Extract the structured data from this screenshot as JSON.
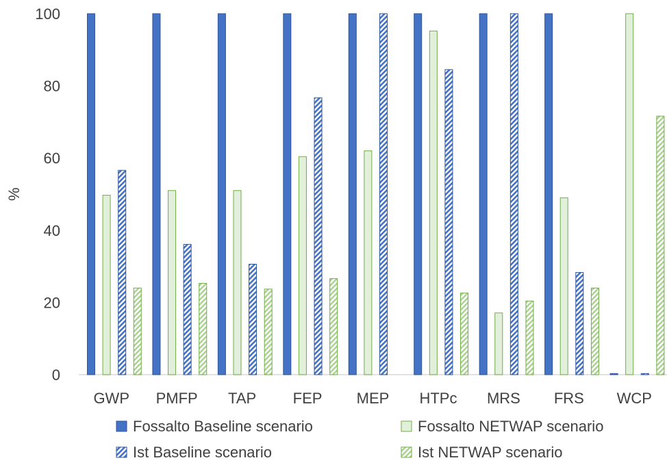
{
  "chart_data": {
    "type": "bar",
    "title": "",
    "xlabel": "",
    "ylabel": "%",
    "ylim": [
      0,
      100
    ],
    "yticks": [
      "0",
      "20",
      "40",
      "60",
      "80",
      "100"
    ],
    "grid": false,
    "legend_position": "bottom",
    "categories": [
      "GWP",
      "PMFP",
      "TAP",
      "FEP",
      "MEP",
      "HTPc",
      "MRS",
      "FRS",
      "WCP"
    ],
    "series": [
      {
        "name": "Fossalto Baseline scenario",
        "color": "#4472C4",
        "pattern": "solid",
        "values": [
          100,
          100,
          100,
          100,
          100,
          100,
          100,
          100,
          0.3
        ]
      },
      {
        "name": "Fossalto NETWAP scenario",
        "color": "#E2EFDA",
        "pattern": "solid",
        "values": [
          49.7,
          51.0,
          51.0,
          60.4,
          62.0,
          95.2,
          17.1,
          49.0,
          100
        ]
      },
      {
        "name": "Ist Baseline scenario",
        "color": "#4472C4",
        "pattern": "hatched",
        "values": [
          56.6,
          36.1,
          30.6,
          76.7,
          100,
          84.5,
          100,
          28.3,
          0.3
        ]
      },
      {
        "name": "Ist NETWAP scenario",
        "color": "#C5E0B4",
        "pattern": "hatched",
        "values": [
          24.0,
          25.3,
          23.7,
          26.6,
          0,
          22.6,
          20.4,
          24.0,
          71.6
        ]
      }
    ]
  }
}
